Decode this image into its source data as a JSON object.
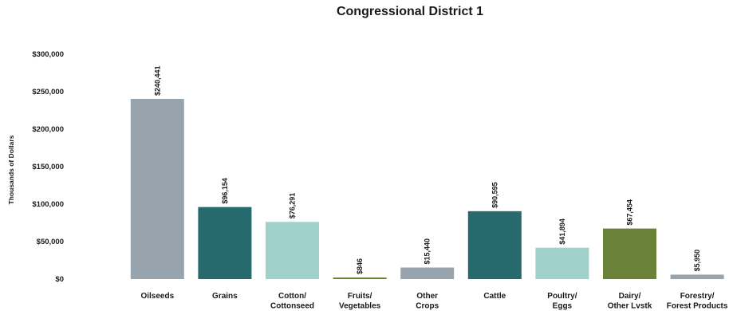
{
  "chart_data": {
    "type": "bar",
    "title": "Congressional District 1",
    "ylabel": "Thousands of Dollars",
    "xlabel": "",
    "ylim": [
      0,
      300000
    ],
    "yticks": [
      "$0",
      "$50,000",
      "$100,000",
      "$150,000",
      "$200,000",
      "$250,000",
      "$300,000"
    ],
    "ytick_values": [
      0,
      50000,
      100000,
      150000,
      200000,
      250000,
      300000
    ],
    "grid": false,
    "categories": [
      [
        "Oilseeds"
      ],
      [
        "Grains"
      ],
      [
        "Cotton/",
        "Cottonseed"
      ],
      [
        "Fruits/",
        "Vegetables"
      ],
      [
        "Other",
        "Crops"
      ],
      [
        "Cattle"
      ],
      [
        "Poultry/",
        "Eggs"
      ],
      [
        "Dairy/",
        "Other Lvstk"
      ],
      [
        "Forestry/",
        "Forest Products"
      ]
    ],
    "values": [
      240441,
      96154,
      76291,
      846,
      15440,
      90595,
      41894,
      67454,
      5950
    ],
    "data_labels": [
      "$240,441",
      "$96,154",
      "$76,291",
      "$846",
      "$15,440",
      "$90,595",
      "$41,894",
      "$67,454",
      "$5,950"
    ],
    "colors": [
      "#97a4ad",
      "#266a6e",
      "#a0d1cb",
      "#6a8138",
      "#97a4ad",
      "#266a6e",
      "#a0d1cb",
      "#6a8138",
      "#97a4ad"
    ]
  }
}
